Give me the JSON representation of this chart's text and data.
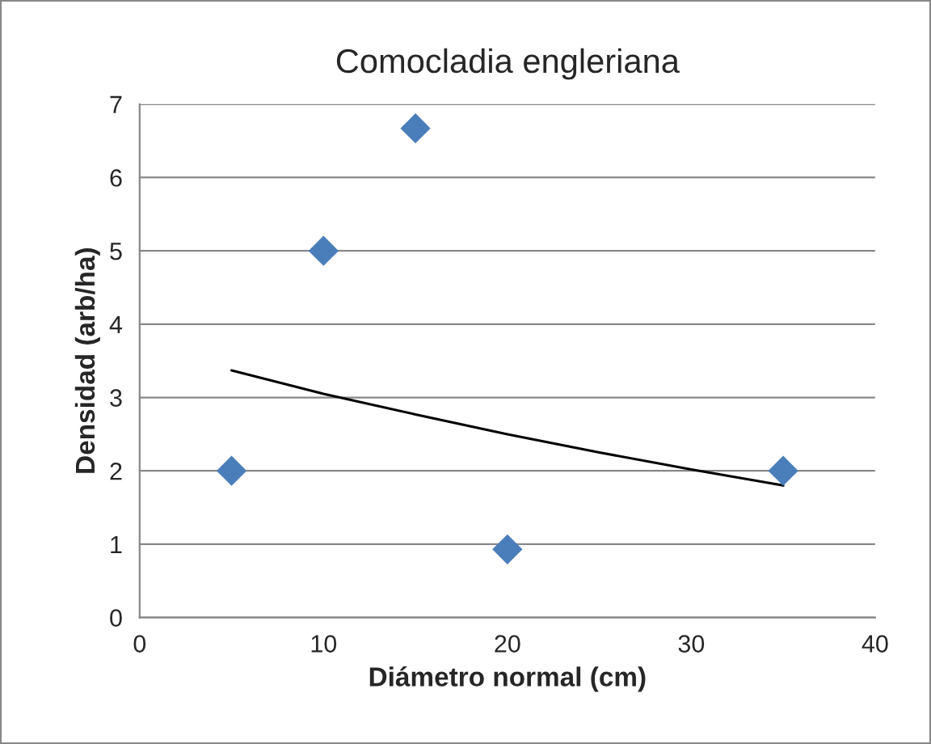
{
  "chart_data": {
    "type": "scatter",
    "title": "Comocladia engleriana",
    "xlabel": "Diámetro normal (cm)",
    "ylabel": "Densidad (arb/ha)",
    "xlim": [
      0,
      40
    ],
    "xticks": [
      0,
      10,
      20,
      30,
      40
    ],
    "ylim": [
      0,
      7
    ],
    "yticks": [
      0,
      1,
      2,
      3,
      4,
      5,
      6,
      7
    ],
    "grid": "y",
    "series": [
      {
        "marker": "diamond",
        "color": "#4a7ebb",
        "x": [
          5,
          10,
          15,
          20,
          35
        ],
        "values": [
          2,
          5,
          6.67,
          0.93,
          2
        ]
      },
      {
        "type": "line",
        "color": "#000000",
        "line_style": "solid",
        "marker": "none",
        "x": [
          5,
          10,
          15,
          20,
          25,
          30,
          35
        ],
        "values": [
          3.37,
          3.05,
          2.77,
          2.5,
          2.25,
          2.02,
          1.8
        ]
      }
    ]
  }
}
